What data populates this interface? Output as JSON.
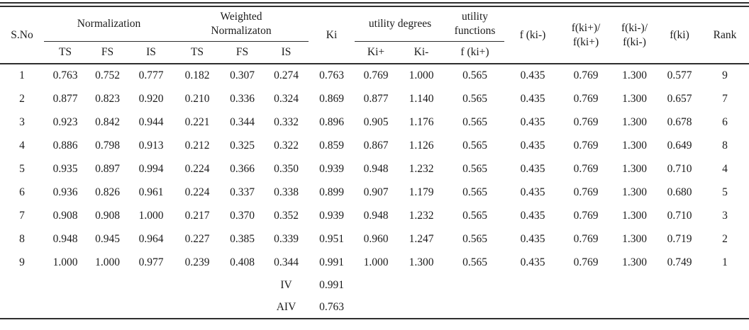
{
  "page": {
    "background": "#ffffff",
    "text_color": "#1b1b1b",
    "rule_color": "#2e2e2e"
  },
  "table": {
    "header": {
      "sno": "S.No",
      "normalization": "Normalization",
      "weighted_line1": "Weighted",
      "weighted_line2": "Normalizaton",
      "ki": "Ki",
      "utility_degrees": "utility degrees",
      "utility_functions_line1": "utility",
      "utility_functions_line2": "functions",
      "ts1": "TS",
      "fs1": "FS",
      "is1": "IS",
      "ts2": "TS",
      "fs2": "FS",
      "is2": "IS",
      "ki_plus": "Ki+",
      "ki_minus": "Ki-",
      "f_ki_plus": "f (ki+)",
      "f_ki_minus": "f (ki-)",
      "ratio_plus_line1": "f(ki+)/",
      "ratio_plus_line2": "f(ki+)",
      "ratio_minus_line1": "f(ki-)/",
      "ratio_minus_line2": "f(ki-)",
      "f_ki": "f(ki)",
      "rank": "Rank"
    },
    "rows": [
      [
        "1",
        "0.763",
        "0.752",
        "0.777",
        "0.182",
        "0.307",
        "0.274",
        "0.763",
        "0.769",
        "1.000",
        "0.565",
        "0.435",
        "0.769",
        "1.300",
        "0.577",
        "9"
      ],
      [
        "2",
        "0.877",
        "0.823",
        "0.920",
        "0.210",
        "0.336",
        "0.324",
        "0.869",
        "0.877",
        "1.140",
        "0.565",
        "0.435",
        "0.769",
        "1.300",
        "0.657",
        "7"
      ],
      [
        "3",
        "0.923",
        "0.842",
        "0.944",
        "0.221",
        "0.344",
        "0.332",
        "0.896",
        "0.905",
        "1.176",
        "0.565",
        "0.435",
        "0.769",
        "1.300",
        "0.678",
        "6"
      ],
      [
        "4",
        "0.886",
        "0.798",
        "0.913",
        "0.212",
        "0.325",
        "0.322",
        "0.859",
        "0.867",
        "1.126",
        "0.565",
        "0.435",
        "0.769",
        "1.300",
        "0.649",
        "8"
      ],
      [
        "5",
        "0.935",
        "0.897",
        "0.994",
        "0.224",
        "0.366",
        "0.350",
        "0.939",
        "0.948",
        "1.232",
        "0.565",
        "0.435",
        "0.769",
        "1.300",
        "0.710",
        "4"
      ],
      [
        "6",
        "0.936",
        "0.826",
        "0.961",
        "0.224",
        "0.337",
        "0.338",
        "0.899",
        "0.907",
        "1.179",
        "0.565",
        "0.435",
        "0.769",
        "1.300",
        "0.680",
        "5"
      ],
      [
        "7",
        "0.908",
        "0.908",
        "1.000",
        "0.217",
        "0.370",
        "0.352",
        "0.939",
        "0.948",
        "1.232",
        "0.565",
        "0.435",
        "0.769",
        "1.300",
        "0.710",
        "3"
      ],
      [
        "8",
        "0.948",
        "0.945",
        "0.964",
        "0.227",
        "0.385",
        "0.339",
        "0.951",
        "0.960",
        "1.247",
        "0.565",
        "0.435",
        "0.769",
        "1.300",
        "0.719",
        "2"
      ],
      [
        "9",
        "1.000",
        "1.000",
        "0.977",
        "0.239",
        "0.408",
        "0.344",
        "0.991",
        "1.000",
        "1.300",
        "0.565",
        "0.435",
        "0.769",
        "1.300",
        "0.749",
        "1"
      ]
    ],
    "footer_rows": [
      {
        "label": "IV",
        "value": "0.991"
      },
      {
        "label": "AIV",
        "value": "0.763"
      }
    ]
  }
}
